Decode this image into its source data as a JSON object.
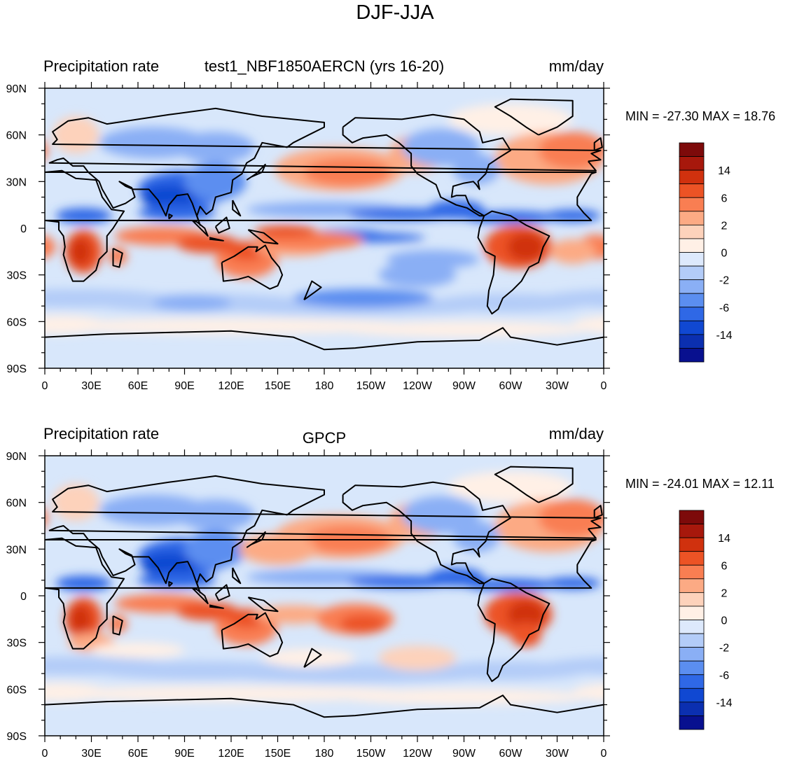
{
  "figure": {
    "title": "DJF-JJA"
  },
  "colors": {
    "fill": [
      "#08108f",
      "#0b2fb0",
      "#1048d2",
      "#2f68e6",
      "#5b8ef0",
      "#8aaff5",
      "#b3ccf8",
      "#dde9fc",
      "#fff0e6",
      "#fdd2bb",
      "#fcaa84",
      "#f97e52",
      "#ec5325",
      "#d0310e",
      "#a7180c",
      "#7d0a0a"
    ],
    "ocean_background": "#d8e7fb",
    "coast": "#000000"
  },
  "chart_data": [
    {
      "type": "contour-map",
      "title_left": "Precipitation rate",
      "title_center": "test1_NBF1850AERCN (yrs 16-20)",
      "title_right": "mm/day",
      "min_max": "MIN = -27.30 MAX =  18.76",
      "xticks": [
        "0",
        "30E",
        "60E",
        "90E",
        "120E",
        "150E",
        "180",
        "150W",
        "120W",
        "90W",
        "60W",
        "30W",
        "0"
      ],
      "yticks": [
        "90N",
        "60N",
        "30N",
        "0",
        "30S",
        "60S",
        "90S"
      ],
      "xlim": [
        0,
        360
      ],
      "ylim": [
        -90,
        90
      ],
      "colorbar": {
        "labels": [
          "14",
          "6",
          "2",
          "0",
          "-2",
          "-6",
          "-14"
        ],
        "levels": [
          -20,
          -17,
          -14,
          -10,
          -6,
          -4,
          -2,
          -1,
          0,
          1,
          2,
          4,
          6,
          10,
          14,
          17,
          20
        ]
      }
    },
    {
      "type": "contour-map",
      "title_left": "Precipitation rate",
      "title_center": "GPCP",
      "title_right": "mm/day",
      "min_max": "MIN = -24.01 MAX =  12.11",
      "xticks": [
        "0",
        "30E",
        "60E",
        "90E",
        "120E",
        "150E",
        "180",
        "150W",
        "120W",
        "90W",
        "60W",
        "30W",
        "0"
      ],
      "yticks": [
        "90N",
        "60N",
        "30N",
        "0",
        "30S",
        "60S",
        "90S"
      ],
      "xlim": [
        0,
        360
      ],
      "ylim": [
        -90,
        90
      ],
      "colorbar": {
        "labels": [
          "14",
          "6",
          "2",
          "0",
          "-2",
          "-6",
          "-14"
        ],
        "levels": [
          -20,
          -17,
          -14,
          -10,
          -6,
          -4,
          -2,
          -1,
          0,
          1,
          2,
          4,
          6,
          10,
          14,
          17,
          20
        ]
      }
    }
  ]
}
